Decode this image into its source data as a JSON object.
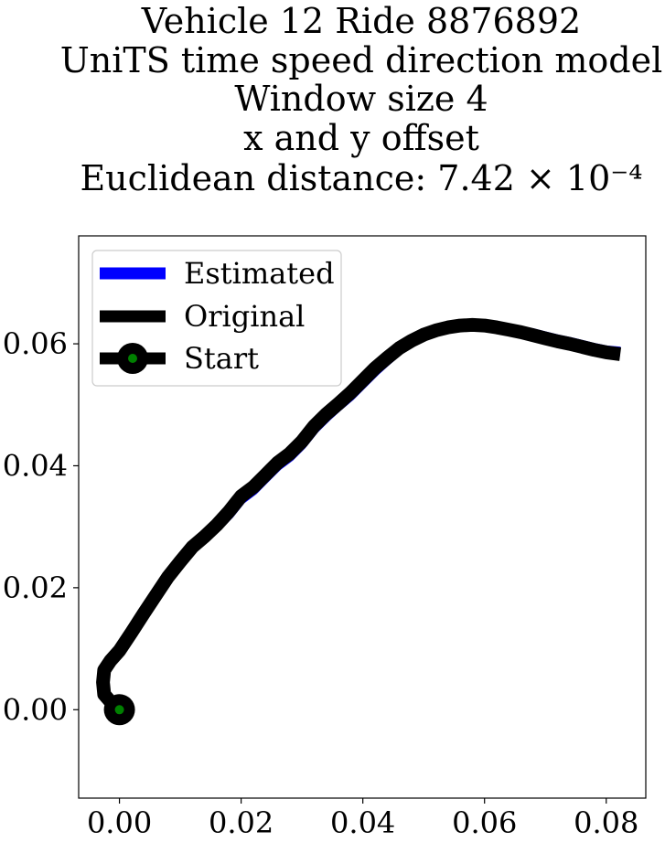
{
  "chart_data": {
    "type": "line",
    "title_lines": [
      "Vehicle 12 Ride 8876892",
      "UniTS time speed direction model",
      "Window size 4",
      "x and y offset",
      "Euclidean distance: 7.42 × 10⁻⁴"
    ],
    "xlabel": "",
    "ylabel": "",
    "xlim": [
      -0.0067,
      0.0865
    ],
    "ylim": [
      -0.0145,
      0.0777
    ],
    "xticks": [
      0.0,
      0.02,
      0.04,
      0.06,
      0.08
    ],
    "xtick_labels": [
      "0.00",
      "0.02",
      "0.04",
      "0.06",
      "0.08"
    ],
    "yticks": [
      0.0,
      0.02,
      0.04,
      0.06
    ],
    "ytick_labels": [
      "0.00",
      "0.02",
      "0.04",
      "0.06"
    ],
    "grid": false,
    "legend_position": "top-left",
    "series": [
      {
        "name": "Estimated",
        "color": "#0000ff",
        "x": [
          0.0,
          -0.0012,
          -0.0025,
          -0.0027,
          -0.0025,
          -0.0015,
          0.0,
          0.002,
          0.004,
          0.006,
          0.008,
          0.01,
          0.012,
          0.014,
          0.016,
          0.018,
          0.02,
          0.022,
          0.024,
          0.026,
          0.028,
          0.03,
          0.032,
          0.034,
          0.036,
          0.038,
          0.04,
          0.042,
          0.044,
          0.046,
          0.048,
          0.05,
          0.052,
          0.054,
          0.056,
          0.058,
          0.06,
          0.062,
          0.064,
          0.066,
          0.068,
          0.07,
          0.072,
          0.074,
          0.076,
          0.078,
          0.08,
          0.0823
        ],
        "y": [
          0.0,
          0.001,
          0.0025,
          0.0045,
          0.0065,
          0.008,
          0.0095,
          0.0125,
          0.0155,
          0.0185,
          0.0215,
          0.024,
          0.0265,
          0.0282,
          0.03,
          0.032,
          0.0345,
          0.036,
          0.038,
          0.04,
          0.0415,
          0.0435,
          0.046,
          0.048,
          0.0498,
          0.0515,
          0.0535,
          0.0555,
          0.0573,
          0.059,
          0.0603,
          0.0613,
          0.062,
          0.0625,
          0.0629,
          0.0631,
          0.0632,
          0.0629,
          0.0625,
          0.0621,
          0.0617,
          0.0612,
          0.0607,
          0.0603,
          0.0598,
          0.0593,
          0.0589,
          0.0587
        ]
      },
      {
        "name": "Original",
        "color": "#000000",
        "x": [
          0.0,
          -0.0012,
          -0.0025,
          -0.0027,
          -0.0025,
          -0.0015,
          0.0,
          0.002,
          0.004,
          0.006,
          0.008,
          0.01,
          0.012,
          0.014,
          0.016,
          0.018,
          0.02,
          0.022,
          0.024,
          0.026,
          0.028,
          0.03,
          0.032,
          0.034,
          0.036,
          0.038,
          0.04,
          0.042,
          0.044,
          0.046,
          0.048,
          0.05,
          0.052,
          0.054,
          0.056,
          0.058,
          0.06,
          0.062,
          0.064,
          0.066,
          0.068,
          0.07,
          0.072,
          0.074,
          0.076,
          0.078,
          0.08,
          0.0823
        ],
        "y": [
          0.0,
          0.001,
          0.0025,
          0.0045,
          0.0065,
          0.008,
          0.0097,
          0.0127,
          0.0158,
          0.0188,
          0.0218,
          0.0243,
          0.0267,
          0.0284,
          0.0303,
          0.0325,
          0.035,
          0.0365,
          0.0385,
          0.0405,
          0.042,
          0.044,
          0.0465,
          0.0485,
          0.0502,
          0.052,
          0.054,
          0.056,
          0.0577,
          0.0593,
          0.0605,
          0.0615,
          0.0622,
          0.0627,
          0.063,
          0.0631,
          0.063,
          0.0627,
          0.0623,
          0.0619,
          0.0614,
          0.0609,
          0.0604,
          0.06,
          0.0595,
          0.059,
          0.0586,
          0.0583
        ]
      }
    ],
    "start_point": {
      "name": "Start",
      "x": 0.0,
      "y": 0.0,
      "outer_color": "#000000",
      "inner_color": "#008000"
    }
  }
}
